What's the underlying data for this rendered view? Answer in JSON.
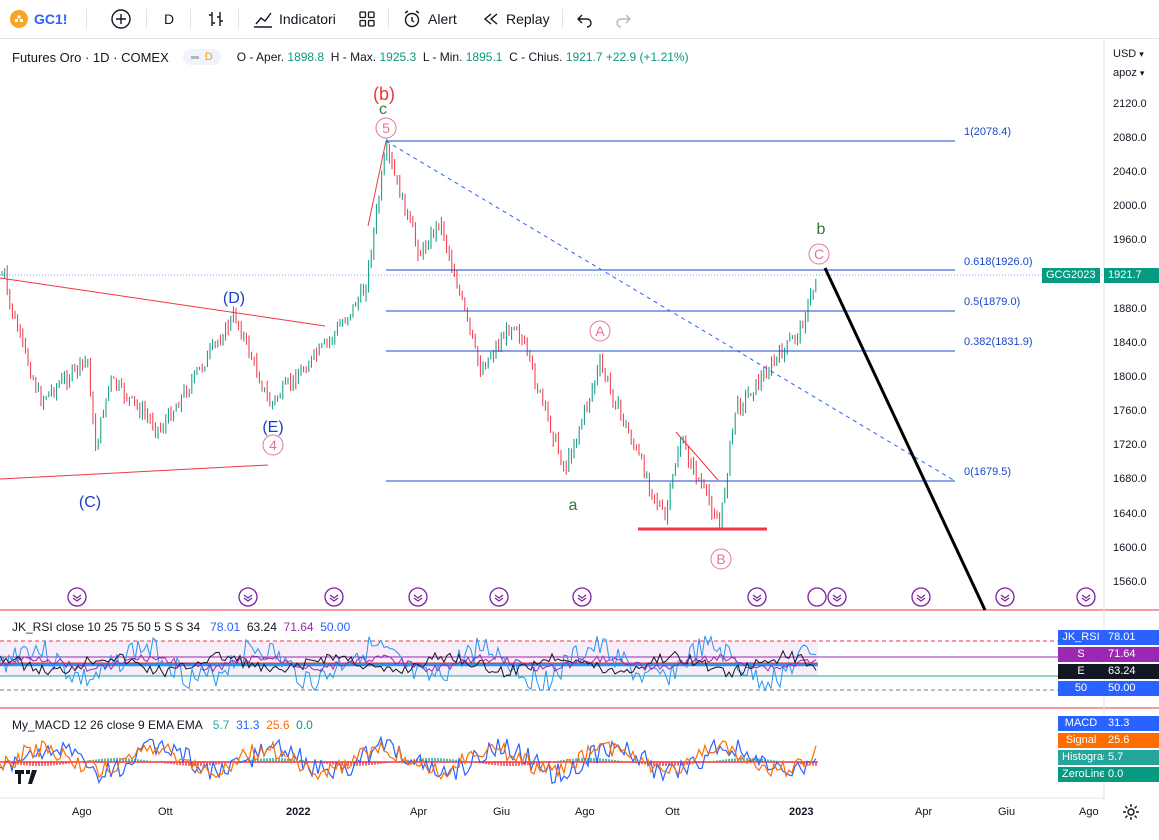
{
  "toolbar": {
    "symbol": "GC1!",
    "interval": "D",
    "indicators_label": "Indicatori",
    "alert_label": "Alert",
    "replay_label": "Replay"
  },
  "legend": {
    "title": "Futures Oro · 1D · COMEX",
    "badge": "D",
    "o_label": "O - Aper.",
    "o_val": "1898.8",
    "h_label": "H - Max.",
    "h_val": "1925.3",
    "l_label": "L - Min.",
    "l_val": "1895.1",
    "c_label": "C - Chius.",
    "c_val": "1921.7",
    "change": "+22.9 (+1.21%)"
  },
  "axis": {
    "currency": "USD",
    "scale": "apoz",
    "price_labels": [
      "2120.0",
      "2080.0",
      "2040.0",
      "2000.0",
      "1960.0",
      "1920.0",
      "1880.0",
      "1840.0",
      "1800.0",
      "1760.0",
      "1720.0",
      "1680.0",
      "1640.0",
      "1600.0",
      "1560.0"
    ],
    "time_labels": [
      "Ago",
      "Ott",
      "2022",
      "Apr",
      "Giu",
      "Ago",
      "Ott",
      "2023",
      "Apr",
      "Giu",
      "Ago"
    ]
  },
  "fib": {
    "l1": "1(2078.4)",
    "l618": "0.618(1926.0)",
    "l5": "0.5(1879.0)",
    "l382": "0.382(1831.9)",
    "l0": "0(1679.5)"
  },
  "waves": {
    "D": "(D)",
    "E": "(E)",
    "C": "(C)",
    "b_paren": "(b)",
    "c_small": "c",
    "five": "5",
    "four": "4",
    "A": "A",
    "B": "B",
    "Ccirc": "C",
    "a_small": "a",
    "b_small": "b"
  },
  "price_tag": {
    "symbol": "GCG2023",
    "value": "1921.7"
  },
  "rsi": {
    "label": "JK_RSI close 10 25 75 50 5 S S 34",
    "v1": "78.01",
    "v2": "63.24",
    "v3": "71.64",
    "v4": "50.00",
    "tags": [
      {
        "name": "JK_RSI",
        "value": "78.01",
        "color": "#2962ff"
      },
      {
        "name": "S",
        "value": "71.64",
        "color": "#9c27b0"
      },
      {
        "name": "E",
        "value": "63.24",
        "color": "#131722"
      },
      {
        "name": "50",
        "value": "50.00",
        "color": "#2962ff"
      }
    ]
  },
  "macd": {
    "label": "My_MACD 12 26 close 9 EMA EMA",
    "v1": "5.7",
    "v2": "31.3",
    "v3": "25.6",
    "v4": "0.0",
    "tags": [
      {
        "name": "MACD",
        "value": "31.3",
        "color": "#2962ff"
      },
      {
        "name": "Signal",
        "value": "25.6",
        "color": "#ff6d00"
      },
      {
        "name": "Histogram",
        "value": "5.7",
        "color": "#26a69a"
      },
      {
        "name": "ZeroLine",
        "value": "0.0",
        "color": "#089981"
      }
    ]
  },
  "colors": {
    "accent": "#2962ff",
    "up": "#089981",
    "down": "#f23645",
    "fib": "#1848cc",
    "wave_pink": "#e57399"
  }
}
